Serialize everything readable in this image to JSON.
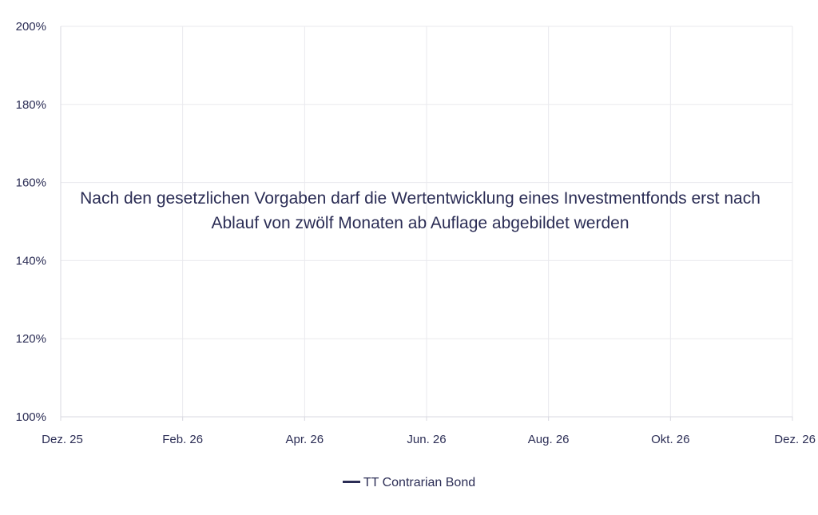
{
  "chart_data": {
    "type": "line",
    "title": "",
    "xlabel": "",
    "ylabel": "",
    "x_tick_labels": [
      "Dez. 25",
      "Feb. 26",
      "Apr. 26",
      "Jun. 26",
      "Aug. 26",
      "Okt. 26",
      "Dez. 26"
    ],
    "y_tick_labels": [
      "100%",
      "120%",
      "140%",
      "160%",
      "180%",
      "200%"
    ],
    "y_ticks": [
      100,
      120,
      140,
      160,
      180,
      200
    ],
    "ylim": [
      100,
      200
    ],
    "grid": true,
    "legend_position": "bottom-center",
    "series": [
      {
        "name": "TT Contrarian Bond",
        "values": [],
        "color": "#2b2d55"
      }
    ],
    "annotation": "Nach den gesetzlichen Vorgaben darf die Wertentwicklung eines Investmentfonds erst nach Ablauf von zwölf Monaten ab Auflage abgebildet werden"
  }
}
